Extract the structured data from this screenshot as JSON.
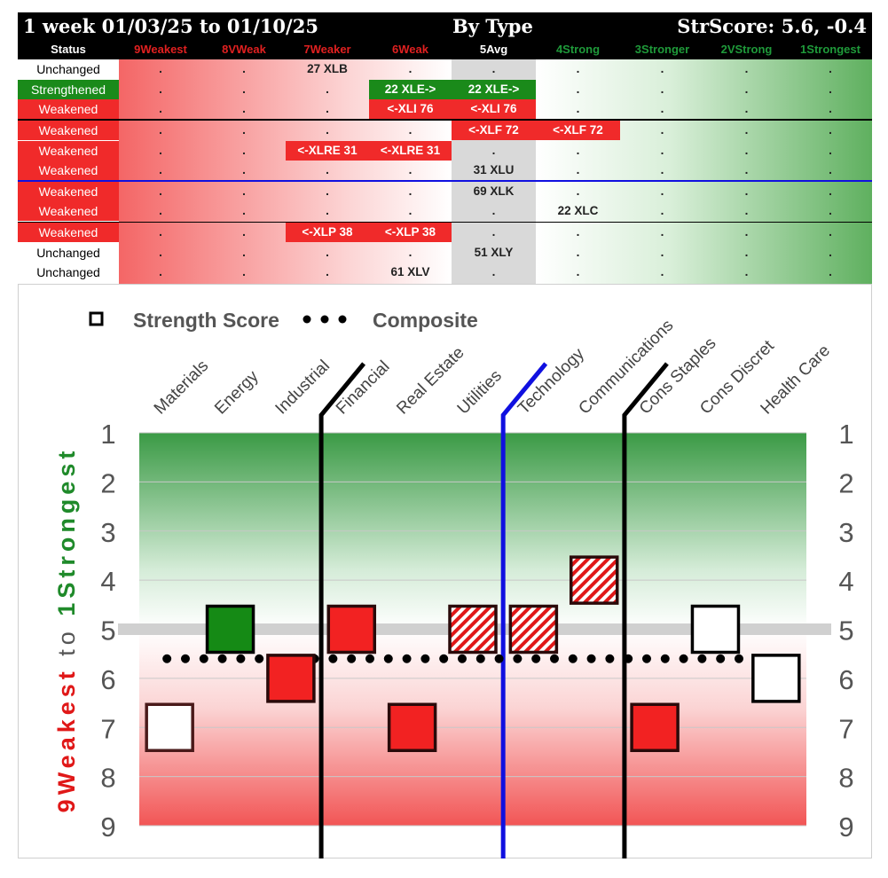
{
  "header": {
    "period": "1 week 01/03/25 to 01/10/25",
    "view": "By Type",
    "score": "StrScore: 5.6, -0.4"
  },
  "columns": [
    {
      "label": "Status",
      "color": "#ffffff"
    },
    {
      "label": "9Weakest",
      "color": "#e02020"
    },
    {
      "label": "8VWeak",
      "color": "#e02020"
    },
    {
      "label": "7Weaker",
      "color": "#e02020"
    },
    {
      "label": "6Weak",
      "color": "#e02020"
    },
    {
      "label": "5Avg",
      "color": "#ffffff"
    },
    {
      "label": "4Strong",
      "color": "#1f9a3a"
    },
    {
      "label": "3Stronger",
      "color": "#1f9a3a"
    },
    {
      "label": "2VStrong",
      "color": "#1f9a3a"
    },
    {
      "label": "1Strongest",
      "color": "#1f9a3a"
    }
  ],
  "rows": [
    {
      "status": "Unchanged",
      "status_style": "plain",
      "cells": [
        ".",
        ".",
        "27 XLB",
        ".",
        ".",
        ".",
        ".",
        ".",
        "."
      ],
      "hl": [
        null,
        null,
        null,
        null,
        null,
        null,
        null,
        null,
        null
      ]
    },
    {
      "status": "Strengthened",
      "status_style": "green",
      "cells": [
        ".",
        ".",
        ".",
        "22 XLE->",
        "22 XLE->",
        ".",
        ".",
        ".",
        "."
      ],
      "hl": [
        null,
        null,
        null,
        "green",
        "green",
        null,
        null,
        null,
        null
      ]
    },
    {
      "status": "Weakened",
      "status_style": "red",
      "cells": [
        ".",
        ".",
        ".",
        "<-XLI 76",
        "<-XLI 76",
        ".",
        ".",
        ".",
        "."
      ],
      "hl": [
        null,
        null,
        null,
        "red",
        "red",
        null,
        null,
        null,
        null
      ]
    },
    {
      "status": "Weakened",
      "status_style": "red",
      "cells": [
        ".",
        ".",
        ".",
        ".",
        "<-XLF 72",
        "<-XLF 72",
        ".",
        ".",
        "."
      ],
      "hl": [
        null,
        null,
        null,
        null,
        "red",
        "red",
        null,
        null,
        null
      ]
    },
    {
      "status": "Weakened",
      "status_style": "red",
      "cells": [
        ".",
        ".",
        "<-XLRE 31",
        "<-XLRE 31",
        ".",
        ".",
        ".",
        ".",
        "."
      ],
      "hl": [
        null,
        null,
        "red",
        "red",
        null,
        null,
        null,
        null,
        null
      ]
    },
    {
      "status": "Weakened",
      "status_style": "red",
      "cells": [
        ".",
        ".",
        ".",
        ".",
        "31 XLU",
        ".",
        ".",
        ".",
        "."
      ],
      "hl": [
        null,
        null,
        null,
        null,
        null,
        null,
        null,
        null,
        null
      ]
    },
    {
      "status": "Weakened",
      "status_style": "red",
      "cells": [
        ".",
        ".",
        ".",
        ".",
        "69 XLK",
        ".",
        ".",
        ".",
        "."
      ],
      "hl": [
        null,
        null,
        null,
        null,
        null,
        null,
        null,
        null,
        null
      ]
    },
    {
      "status": "Weakened",
      "status_style": "red",
      "cells": [
        ".",
        ".",
        ".",
        ".",
        ".",
        "22 XLC",
        ".",
        ".",
        "."
      ],
      "hl": [
        null,
        null,
        null,
        null,
        null,
        null,
        null,
        null,
        null
      ]
    },
    {
      "status": "Weakened",
      "status_style": "red",
      "cells": [
        ".",
        ".",
        "<-XLP 38",
        "<-XLP 38",
        ".",
        ".",
        ".",
        ".",
        "."
      ],
      "hl": [
        null,
        null,
        "red",
        "red",
        null,
        null,
        null,
        null,
        null
      ]
    },
    {
      "status": "Unchanged",
      "status_style": "plain",
      "cells": [
        ".",
        ".",
        ".",
        ".",
        "51 XLY",
        ".",
        ".",
        ".",
        "."
      ],
      "hl": [
        null,
        null,
        null,
        null,
        null,
        null,
        null,
        null,
        null
      ]
    },
    {
      "status": "Unchanged",
      "status_style": "plain",
      "cells": [
        ".",
        ".",
        ".",
        "61 XLV",
        ".",
        ".",
        ".",
        ".",
        "."
      ],
      "hl": [
        null,
        null,
        null,
        null,
        null,
        null,
        null,
        null,
        null
      ]
    }
  ],
  "colors": {
    "red": "#f02a2a",
    "green": "#1a8a1a",
    "blue": "#1010e0",
    "weak_text": "#e02020",
    "strong_text": "#1f9a3a"
  },
  "chart_data": {
    "type": "scatter",
    "legend": {
      "square_label": "Strength Score",
      "dots_label": "Composite"
    },
    "ylabel_weak": "9Weakest",
    "ylabel_to": "to",
    "ylabel_strong": "1Strongest",
    "y_ticks": [
      "1",
      "2",
      "3",
      "4",
      "5",
      "6",
      "7",
      "8",
      "9"
    ],
    "ylim": [
      1,
      9
    ],
    "reference_line": 5,
    "composite": 5.6,
    "categories": [
      "Materials",
      "Energy",
      "Industrial",
      "Financial",
      "Real Estate",
      "Utilities",
      "Technology",
      "Communications",
      "Cons Staples",
      "Cons Discret",
      "Health Care"
    ],
    "values": [
      7,
      5,
      6,
      5,
      7,
      5,
      5,
      4,
      7,
      5,
      6
    ],
    "styles": [
      "outline-red",
      "green",
      "red",
      "red",
      "red",
      "hatched",
      "hatched",
      "hatched",
      "red",
      "outline-black",
      "outline-black"
    ],
    "dividers": [
      {
        "after_index": 2,
        "color": "black"
      },
      {
        "after_index": 5,
        "color": "blue"
      },
      {
        "after_index": 7,
        "color": "black"
      }
    ]
  }
}
